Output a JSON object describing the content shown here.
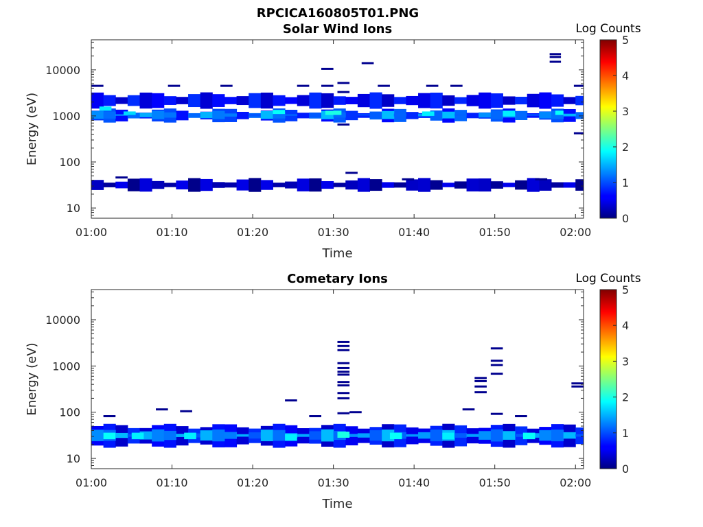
{
  "figure_title": "RPCICA160805T01.PNG",
  "chart_data": [
    {
      "type": "heatmap",
      "title": "Solar Wind Ions",
      "xlabel": "Time",
      "ylabel": "Energy (eV)",
      "x_range_minutes": [
        0,
        61
      ],
      "xticks": [
        {
          "v": 0,
          "label": "01:00"
        },
        {
          "v": 10,
          "label": "01:10"
        },
        {
          "v": 20,
          "label": "01:20"
        },
        {
          "v": 30,
          "label": "01:30"
        },
        {
          "v": 40,
          "label": "01:40"
        },
        {
          "v": 50,
          "label": "01:50"
        },
        {
          "v": 60,
          "label": "02:00"
        }
      ],
      "yscale": "log",
      "ylim": [
        6,
        45000
      ],
      "yticks": [
        {
          "v": 10,
          "label": "10"
        },
        {
          "v": 100,
          "label": "100"
        },
        {
          "v": 1000,
          "label": "1000"
        },
        {
          "v": 10000,
          "label": "10000"
        }
      ],
      "colorbar": {
        "label": "Log Counts",
        "min": 0,
        "max": 5,
        "ticks": [
          "0",
          "1",
          "2",
          "3",
          "4",
          "5"
        ]
      },
      "bands": [
        {
          "t0": 0,
          "t1": 61,
          "e0": 800,
          "e1": 1300,
          "value": 0.9
        },
        {
          "t0": 0,
          "t1": 61,
          "e0": 950,
          "e1": 1150,
          "value": 1.3
        },
        {
          "t0": 0,
          "t1": 61,
          "e0": 1600,
          "e1": 2900,
          "value": 0.6
        },
        {
          "t0": 0,
          "t1": 61,
          "e0": 25,
          "e1": 40,
          "value": 0.3
        }
      ],
      "hot_spots": [
        {
          "t0": 1.0,
          "t1": 2.5,
          "e0": 1300,
          "e1": 1600,
          "value": 1.8
        },
        {
          "t0": 4.0,
          "t1": 5.5,
          "e0": 1050,
          "e1": 1250,
          "value": 1.7
        },
        {
          "t0": 22.5,
          "t1": 24.0,
          "e0": 1100,
          "e1": 1350,
          "value": 1.9
        },
        {
          "t0": 29.0,
          "t1": 31.0,
          "e0": 1050,
          "e1": 1300,
          "value": 2.0
        },
        {
          "t0": 41.0,
          "t1": 42.5,
          "e0": 1000,
          "e1": 1250,
          "value": 1.8
        },
        {
          "t0": 51.0,
          "t1": 52.5,
          "e0": 1000,
          "e1": 1300,
          "value": 1.8
        },
        {
          "t0": 57.5,
          "t1": 58.5,
          "e0": 1050,
          "e1": 1300,
          "value": 1.9
        }
      ],
      "lines": [
        {
          "t0": 0,
          "t1": 1.5,
          "e": 4500
        },
        {
          "t0": 9.5,
          "t1": 11,
          "e": 4500
        },
        {
          "t0": 16,
          "t1": 17.5,
          "e": 4500
        },
        {
          "t0": 25.5,
          "t1": 27,
          "e": 4500
        },
        {
          "t0": 28.5,
          "t1": 30,
          "e": 4500
        },
        {
          "t0": 28.5,
          "t1": 30,
          "e": 10500
        },
        {
          "t0": 30.5,
          "t1": 32,
          "e": 5200
        },
        {
          "t0": 30.5,
          "t1": 32,
          "e": 3300
        },
        {
          "t0": 33.5,
          "t1": 35,
          "e": 14000
        },
        {
          "t0": 35.5,
          "t1": 37,
          "e": 4500
        },
        {
          "t0": 41.5,
          "t1": 43,
          "e": 4500
        },
        {
          "t0": 44.5,
          "t1": 46,
          "e": 4500
        },
        {
          "t0": 56.8,
          "t1": 58.2,
          "e": 22000
        },
        {
          "t0": 56.8,
          "t1": 58.2,
          "e": 19000
        },
        {
          "t0": 56.8,
          "t1": 58.2,
          "e": 15000
        },
        {
          "t0": 59.8,
          "t1": 61,
          "e": 4500
        },
        {
          "t0": 59.8,
          "t1": 61,
          "e": 420
        },
        {
          "t0": 30.5,
          "t1": 32,
          "e": 650
        },
        {
          "t0": 31.5,
          "t1": 33,
          "e": 58
        },
        {
          "t0": 3.0,
          "t1": 4.5,
          "e": 46
        },
        {
          "t0": 38.5,
          "t1": 40,
          "e": 42
        },
        {
          "t0": 55,
          "t1": 56.5,
          "e": 42
        }
      ]
    },
    {
      "type": "heatmap",
      "title": "Cometary Ions",
      "xlabel": "Time",
      "ylabel": "Energy (eV)",
      "x_range_minutes": [
        0,
        61
      ],
      "xticks": [
        {
          "v": 0,
          "label": "01:00"
        },
        {
          "v": 10,
          "label": "01:10"
        },
        {
          "v": 20,
          "label": "01:20"
        },
        {
          "v": 30,
          "label": "01:30"
        },
        {
          "v": 40,
          "label": "01:40"
        },
        {
          "v": 50,
          "label": "01:50"
        },
        {
          "v": 60,
          "label": "02:00"
        }
      ],
      "yscale": "log",
      "ylim": [
        6,
        45000
      ],
      "yticks": [
        {
          "v": 10,
          "label": "10"
        },
        {
          "v": 100,
          "label": "100"
        },
        {
          "v": 1000,
          "label": "1000"
        },
        {
          "v": 10000,
          "label": "10000"
        }
      ],
      "colorbar": {
        "label": "Log Counts",
        "min": 0,
        "max": 5,
        "ticks": [
          "0",
          "1",
          "2",
          "3",
          "4",
          "5"
        ]
      },
      "bands": [
        {
          "t0": 0,
          "t1": 61,
          "e0": 19,
          "e1": 50,
          "value": 0.6
        },
        {
          "t0": 0,
          "t1": 61,
          "e0": 26,
          "e1": 38,
          "value": 1.3
        }
      ],
      "hot_spots": [
        {
          "t0": 1.5,
          "t1": 3.0,
          "e0": 26,
          "e1": 36,
          "value": 1.9
        },
        {
          "t0": 5.0,
          "t1": 6.5,
          "e0": 26,
          "e1": 36,
          "value": 1.8
        },
        {
          "t0": 11.5,
          "t1": 13.0,
          "e0": 26,
          "e1": 36,
          "value": 1.8
        },
        {
          "t0": 24.0,
          "t1": 25.5,
          "e0": 24,
          "e1": 34,
          "value": 1.8
        },
        {
          "t0": 30.5,
          "t1": 32.0,
          "e0": 28,
          "e1": 38,
          "value": 2.0
        },
        {
          "t0": 37.0,
          "t1": 38.5,
          "e0": 26,
          "e1": 36,
          "value": 1.9
        },
        {
          "t0": 43.5,
          "t1": 45.0,
          "e0": 26,
          "e1": 36,
          "value": 1.8
        },
        {
          "t0": 53.5,
          "t1": 55.0,
          "e0": 26,
          "e1": 36,
          "value": 1.9
        }
      ],
      "lines": [
        {
          "t0": 1.5,
          "t1": 3.0,
          "e": 82
        },
        {
          "t0": 8.0,
          "t1": 9.5,
          "e": 115
        },
        {
          "t0": 11.0,
          "t1": 12.5,
          "e": 105
        },
        {
          "t0": 24.0,
          "t1": 25.5,
          "e": 180
        },
        {
          "t0": 27.0,
          "t1": 28.5,
          "e": 82
        },
        {
          "t0": 30.5,
          "t1": 32.0,
          "e": 3300
        },
        {
          "t0": 30.5,
          "t1": 32.0,
          "e": 2700
        },
        {
          "t0": 30.5,
          "t1": 32.0,
          "e": 2200
        },
        {
          "t0": 30.5,
          "t1": 32.0,
          "e": 1150
        },
        {
          "t0": 30.5,
          "t1": 32.0,
          "e": 900
        },
        {
          "t0": 30.5,
          "t1": 32.0,
          "e": 750
        },
        {
          "t0": 30.5,
          "t1": 32.0,
          "e": 650
        },
        {
          "t0": 30.5,
          "t1": 32.0,
          "e": 450
        },
        {
          "t0": 30.5,
          "t1": 32.0,
          "e": 380
        },
        {
          "t0": 30.5,
          "t1": 32.0,
          "e": 260
        },
        {
          "t0": 30.5,
          "t1": 32.0,
          "e": 200
        },
        {
          "t0": 30.5,
          "t1": 32.0,
          "e": 95
        },
        {
          "t0": 32.0,
          "t1": 33.5,
          "e": 100
        },
        {
          "t0": 47.5,
          "t1": 49.0,
          "e": 550
        },
        {
          "t0": 47.5,
          "t1": 49.0,
          "e": 470
        },
        {
          "t0": 47.5,
          "t1": 49.0,
          "e": 360
        },
        {
          "t0": 47.5,
          "t1": 49.0,
          "e": 270
        },
        {
          "t0": 46.0,
          "t1": 47.5,
          "e": 115
        },
        {
          "t0": 49.5,
          "t1": 51.0,
          "e": 2400
        },
        {
          "t0": 49.5,
          "t1": 51.0,
          "e": 1300
        },
        {
          "t0": 49.5,
          "t1": 51.0,
          "e": 1050
        },
        {
          "t0": 49.5,
          "t1": 51.0,
          "e": 680
        },
        {
          "t0": 49.5,
          "t1": 51.0,
          "e": 92
        },
        {
          "t0": 52.5,
          "t1": 54.0,
          "e": 82
        },
        {
          "t0": 59.5,
          "t1": 61.0,
          "e": 420
        },
        {
          "t0": 59.5,
          "t1": 61.0,
          "e": 360
        }
      ]
    }
  ]
}
